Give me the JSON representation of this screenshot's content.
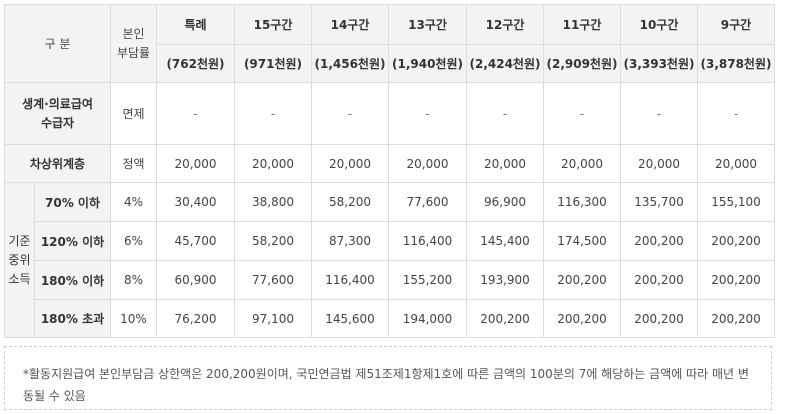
{
  "header": {
    "gubun": "구 분",
    "burden_line1": "본인",
    "burden_line2": "부담률",
    "tiers": [
      {
        "name": "특례",
        "amount": "(762천원)"
      },
      {
        "name": "15구간",
        "amount": "(971천원)"
      },
      {
        "name": "14구간",
        "amount": "(1,456천원)"
      },
      {
        "name": "13구간",
        "amount": "(1,940천원)"
      },
      {
        "name": "12구간",
        "amount": "(2,424천원)"
      },
      {
        "name": "11구간",
        "amount": "(2,909천원)"
      },
      {
        "name": "10구간",
        "amount": "(3,393천원)"
      },
      {
        "name": "9구간",
        "amount": "(3,878천원)"
      }
    ]
  },
  "rows": {
    "livelihood": {
      "label_line1": "생계·의료급여",
      "label_line2": "수급자",
      "rate": "면제",
      "values": [
        "-",
        "-",
        "-",
        "-",
        "-",
        "-",
        "-",
        "-"
      ]
    },
    "near_poor": {
      "label": "차상위계층",
      "rate": "정액",
      "values": [
        "20,000",
        "20,000",
        "20,000",
        "20,000",
        "20,000",
        "20,000",
        "20,000",
        "20,000"
      ]
    },
    "median_group": {
      "label_line1": "기준",
      "label_line2": "중위",
      "label_line3": "소득",
      "items": [
        {
          "label": "70% 이하",
          "rate": "4%",
          "values": [
            "30,400",
            "38,800",
            "58,200",
            "77,600",
            "96,900",
            "116,300",
            "135,700",
            "155,100"
          ]
        },
        {
          "label": "120% 이하",
          "rate": "6%",
          "values": [
            "45,700",
            "58,200",
            "87,300",
            "116,400",
            "145,400",
            "174,500",
            "200,200",
            "200,200"
          ]
        },
        {
          "label": "180% 이하",
          "rate": "8%",
          "values": [
            "60,900",
            "77,600",
            "116,400",
            "155,200",
            "193,900",
            "200,200",
            "200,200",
            "200,200"
          ]
        },
        {
          "label": "180% 초과",
          "rate": "10%",
          "values": [
            "76,200",
            "97,100",
            "145,600",
            "194,000",
            "200,200",
            "200,200",
            "200,200",
            "200,200"
          ]
        }
      ]
    }
  },
  "footnote": "*활동지원급여 본인부담금 상한액은 200,200원이며, 국민연금법 제51조제1항제1호에 따른 금액의 100분의 7에 해당하는 금액에 따라 매년 변동될 수 있음"
}
